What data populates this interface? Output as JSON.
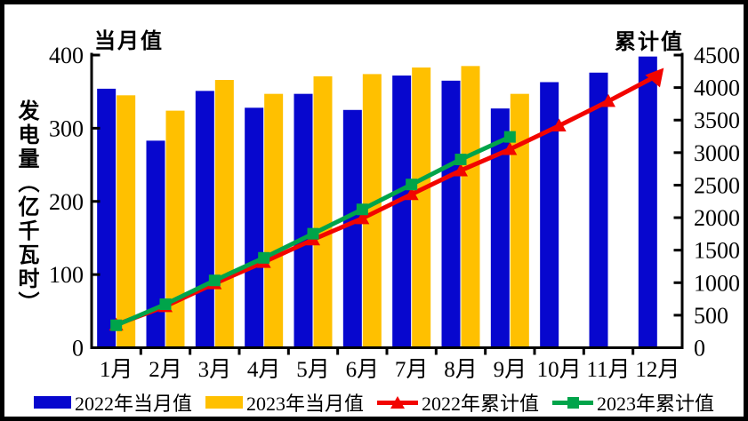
{
  "chart_data": {
    "type": "combo",
    "title": "",
    "ylabel": "发电量（亿千瓦时）",
    "categories": [
      "1月",
      "2月",
      "3月",
      "4月",
      "5月",
      "6月",
      "7月",
      "8月",
      "9月",
      "10月",
      "11月",
      "12月"
    ],
    "axes": {
      "left": {
        "title": "当月值",
        "min": 0,
        "max": 400,
        "ticks": [
          0,
          100,
          200,
          300,
          400
        ]
      },
      "right": {
        "title": "累计值",
        "min": 0,
        "max": 4500,
        "ticks": [
          0,
          500,
          1000,
          1500,
          2000,
          2500,
          3000,
          3500,
          4000,
          4500
        ]
      }
    },
    "grid": false,
    "legend_position": "bottom",
    "series": [
      {
        "name": "2022年当月值",
        "type": "bar",
        "axis": "left",
        "color": "#0707CE",
        "values": [
          354,
          283,
          351,
          328,
          347,
          325,
          372,
          365,
          327,
          363,
          376,
          398
        ]
      },
      {
        "name": "2023年当月值",
        "type": "bar",
        "axis": "left",
        "color": "#FFC000",
        "values": [
          345,
          324,
          366,
          347,
          371,
          374,
          383,
          385,
          347,
          null,
          null,
          null
        ]
      },
      {
        "name": "2022年累计值",
        "type": "line",
        "axis": "right",
        "color": "#F20400",
        "marker": "triangle",
        "values": [
          354,
          637,
          988,
          1316,
          1663,
          1988,
          2360,
          2725,
          3052,
          3415,
          3791,
          4189
        ]
      },
      {
        "name": "2023年累计值",
        "type": "line",
        "axis": "right",
        "color": "#00A44A",
        "marker": "square",
        "values": [
          345,
          669,
          1035,
          1382,
          1753,
          2127,
          2510,
          2895,
          3242,
          null,
          null,
          null
        ]
      }
    ]
  }
}
